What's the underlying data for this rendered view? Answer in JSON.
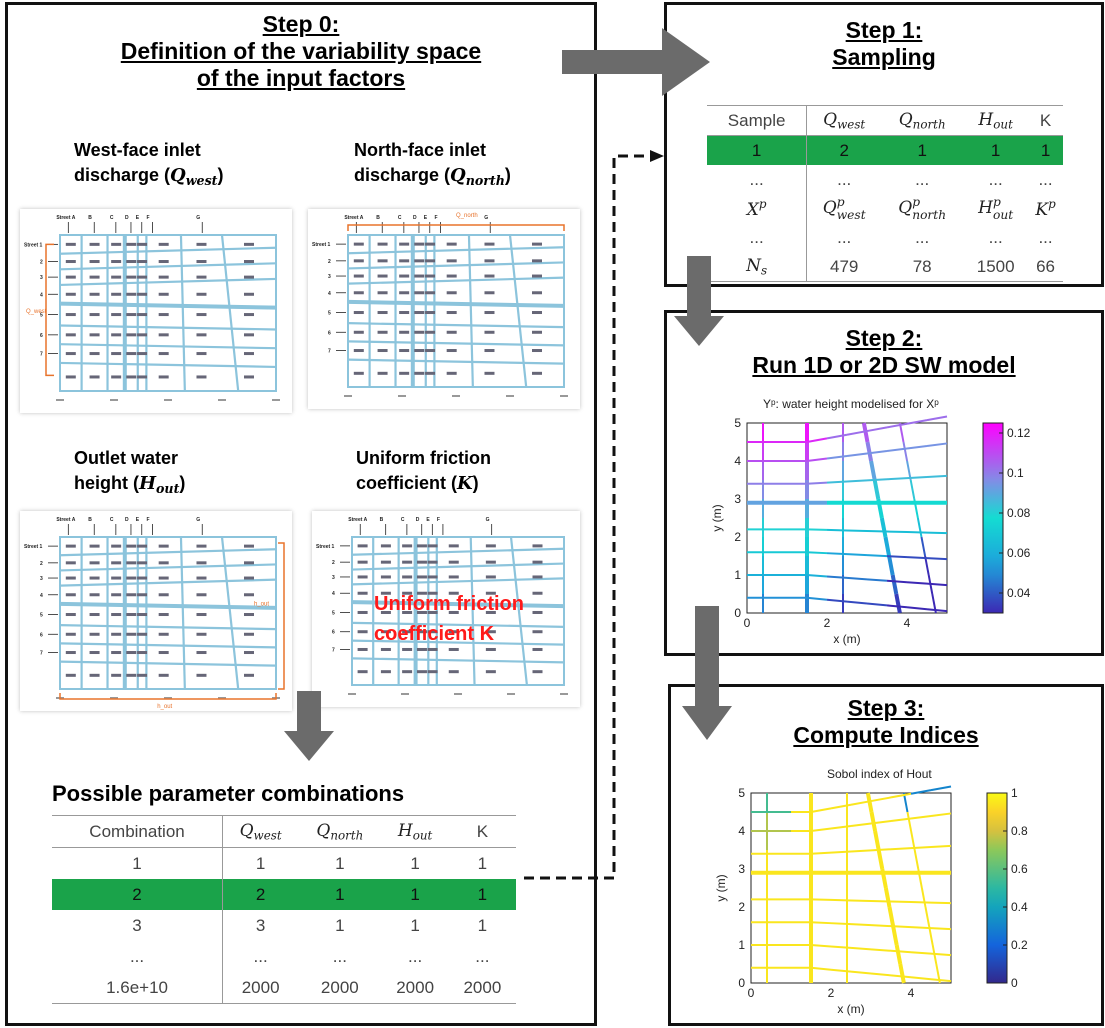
{
  "step0": {
    "title_line1": "Step 0:",
    "title_line2": "Definition of the variability space",
    "title_line3": "of the input factors",
    "west_label_1": "West-face inlet",
    "west_label_2": "discharge (",
    "west_sym": "Q",
    "west_sub": "west",
    "north_label_1": "North-face inlet",
    "north_label_2": "discharge (",
    "north_sym": "Q",
    "north_sub": "north",
    "outlet_label_1": "Outlet water",
    "outlet_label_2": "height (",
    "outlet_sym": "H",
    "outlet_sub": "out",
    "friction_label_1": "Uniform friction",
    "friction_label_2": "coefficient (",
    "friction_sym": "K",
    "friction_overlay_1": "Uniform friction",
    "friction_overlay_2": "coefficient K",
    "combos_title": "Possible parameter combinations",
    "combos_headers": [
      "Combination",
      "Q_west",
      "Q_north",
      "H_out",
      "K"
    ],
    "combos_rows": [
      [
        "1",
        "1",
        "1",
        "1",
        "1"
      ],
      [
        "2",
        "2",
        "1",
        "1",
        "1"
      ],
      [
        "3",
        "3",
        "1",
        "1",
        "1"
      ],
      [
        "...",
        "...",
        "...",
        "...",
        "..."
      ],
      [
        "1.6e+10",
        "2000",
        "2000",
        "2000",
        "2000"
      ]
    ],
    "highlight_row": 1
  },
  "thumb_labels": {
    "streets_top": [
      "Street A",
      "B",
      "C",
      "D",
      "E",
      "F",
      "G"
    ],
    "streets_left": [
      "Street 1",
      "2",
      "3",
      "4",
      "5",
      "6",
      "7"
    ],
    "q_west": "Q_west",
    "q_north": "Q_north",
    "h_out": "h_out"
  },
  "step1": {
    "title_line1": "Step 1:",
    "title_line2": "Sampling",
    "headers": [
      "Sample",
      "Q_west",
      "Q_north",
      "H_out",
      "K"
    ],
    "rows": [
      [
        "1",
        "2",
        "1",
        "1",
        "1"
      ],
      [
        "...",
        "...",
        "...",
        "...",
        "..."
      ],
      [
        "X^p",
        "Q^p_west",
        "Q^p_north",
        "H^p_out",
        "K^p"
      ],
      [
        "...",
        "...",
        "...",
        "...",
        "..."
      ],
      [
        "N_s",
        "479",
        "78",
        "1500",
        "66"
      ]
    ],
    "highlight_row": 0
  },
  "step2": {
    "title_line1": "Step 2:",
    "title_line2": "Run 1D or 2D SW model",
    "plot_title": "Yᵖ: water height modelised for Xᵖ",
    "xlabel": "x (m)",
    "ylabel": "y (m)",
    "xticks": [
      "0",
      "2",
      "4"
    ],
    "yticks": [
      "0",
      "1",
      "2",
      "3",
      "4",
      "5"
    ],
    "cbar_ticks": [
      "0.12",
      "0.1",
      "0.08",
      "0.06",
      "0.04"
    ]
  },
  "step3": {
    "title_line1": "Step 3:",
    "title_line2": "Compute Indices",
    "plot_title": "Sobol index of Hout",
    "xlabel": "x (m)",
    "ylabel": "y (m)",
    "xticks": [
      "0",
      "2",
      "4"
    ],
    "yticks": [
      "0",
      "1",
      "2",
      "3",
      "4",
      "5"
    ],
    "cbar_ticks": [
      "1",
      "0.8",
      "0.6",
      "0.4",
      "0.2",
      "0"
    ]
  },
  "colors": {
    "highlight": "#1aa34a",
    "arrow": "#6b6b6b",
    "grid_blue": "#8cc4dc",
    "orange": "#e8732c",
    "red_text": "#ff1a1a"
  }
}
